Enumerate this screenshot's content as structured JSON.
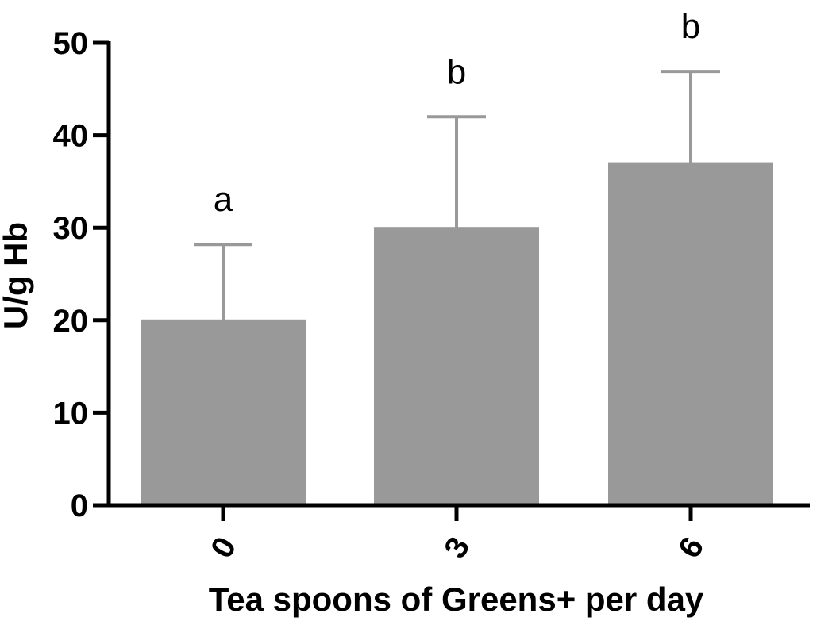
{
  "chart_data": {
    "type": "bar",
    "title": "",
    "xlabel": "Tea spoons of Greens+ per day",
    "ylabel": "U/g Hb",
    "categories": [
      "0",
      "3",
      "6"
    ],
    "values": [
      20,
      30,
      37
    ],
    "error_upper": [
      28.2,
      42.0,
      46.9
    ],
    "annotations": [
      "a",
      "b",
      "b"
    ],
    "ylim": [
      0,
      50
    ],
    "yticks": [
      "0",
      "10",
      "20",
      "30",
      "40",
      "50"
    ],
    "grid": false,
    "legend": "none",
    "bar_color": "#999999",
    "error_bar_color": "#999999",
    "axis_color": "#000000"
  }
}
